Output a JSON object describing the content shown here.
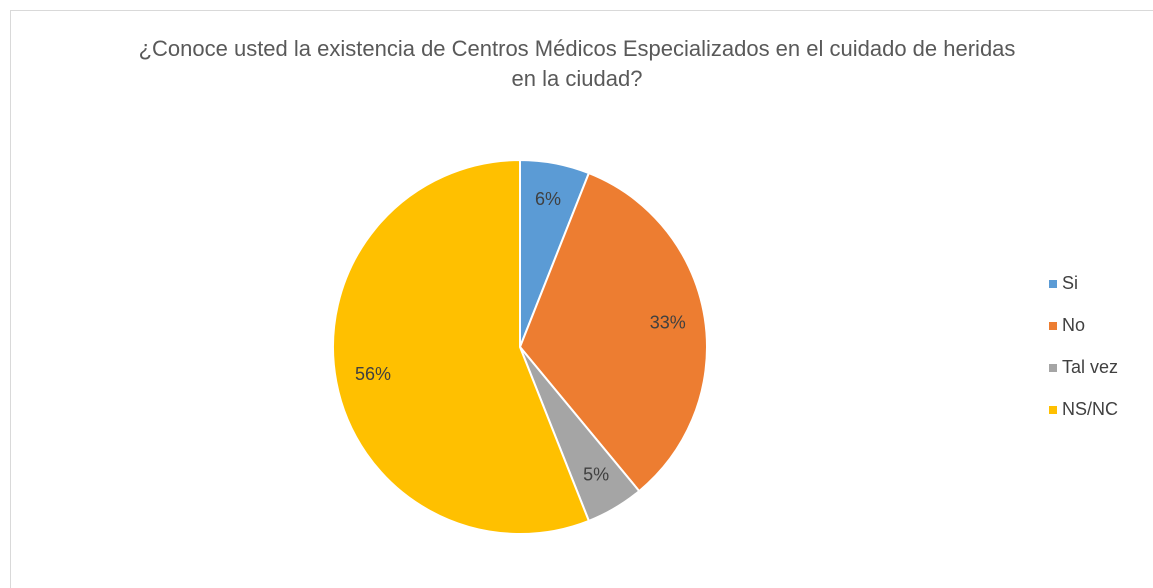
{
  "chart_data": {
    "type": "pie",
    "title": "¿Conoce usted la existencia de Centros Médicos Especializados en el cuidado de heridas en la ciudad?",
    "categories": [
      "Si",
      "No",
      "Tal vez",
      "NS/NC"
    ],
    "values": [
      6,
      33,
      5,
      56
    ],
    "value_labels": [
      "6%",
      "33%",
      "5%",
      "56%"
    ],
    "colors": [
      "#5b9bd5",
      "#ed7d31",
      "#a5a5a5",
      "#ffc000"
    ],
    "legend": "right"
  }
}
